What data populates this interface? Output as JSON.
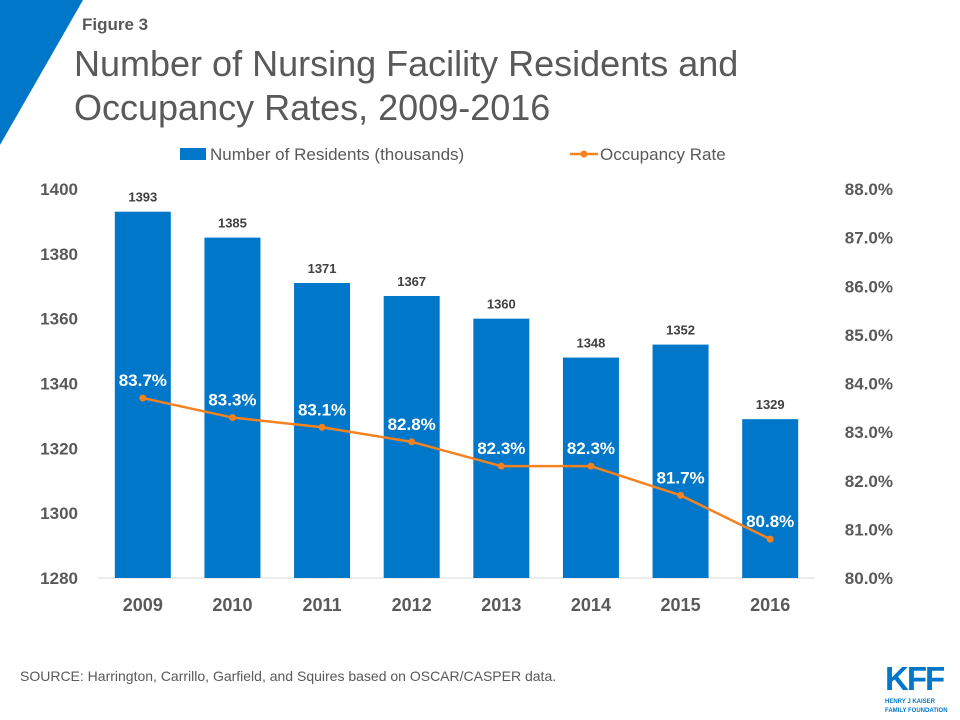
{
  "figure_label": "Figure 3",
  "title": "Number of Nursing Facility Residents and Occupancy Rates, 2009-2016",
  "source": "SOURCE: Harrington,  Carrillo, Garfield, and Squires based on OSCAR/CASPER data.",
  "logo": {
    "text": "KFF",
    "subtitle_1": "HENRY J KAISER",
    "subtitle_2": "FAMILY FOUNDATION"
  },
  "colors": {
    "bar": "#0077c8",
    "line": "#f58220",
    "accent": "#0077c8",
    "text": "#595959"
  },
  "chart_data": {
    "type": "bar+line",
    "title": "Number of Nursing Facility Residents and Occupancy Rates, 2009-2016",
    "categories": [
      "2009",
      "2010",
      "2011",
      "2012",
      "2013",
      "2014",
      "2015",
      "2016"
    ],
    "series": [
      {
        "name": "Number of Residents (thousands)",
        "type": "bar",
        "axis": "left",
        "values": [
          1393,
          1385,
          1371,
          1367,
          1360,
          1348,
          1352,
          1329
        ],
        "labels": [
          "1393",
          "1385",
          "1371",
          "1367",
          "1360",
          "1348",
          "1352",
          "1329"
        ]
      },
      {
        "name": "Occupancy Rate",
        "type": "line",
        "axis": "right",
        "values": [
          83.7,
          83.3,
          83.1,
          82.8,
          82.3,
          82.3,
          81.7,
          80.8
        ],
        "labels": [
          "83.7%",
          "83.3%",
          "83.1%",
          "82.8%",
          "82.3%",
          "82.3%",
          "81.7%",
          "80.8%"
        ]
      }
    ],
    "left_axis": {
      "ylim": [
        1280,
        1400
      ],
      "ticks": [
        "1280",
        "1300",
        "1320",
        "1340",
        "1360",
        "1380",
        "1400"
      ]
    },
    "right_axis": {
      "ylim": [
        80,
        88
      ],
      "ticks": [
        "80.0%",
        "81.0%",
        "82.0%",
        "83.0%",
        "84.0%",
        "85.0%",
        "86.0%",
        "87.0%",
        "88.0%"
      ]
    },
    "grid": false,
    "legend": "top"
  }
}
